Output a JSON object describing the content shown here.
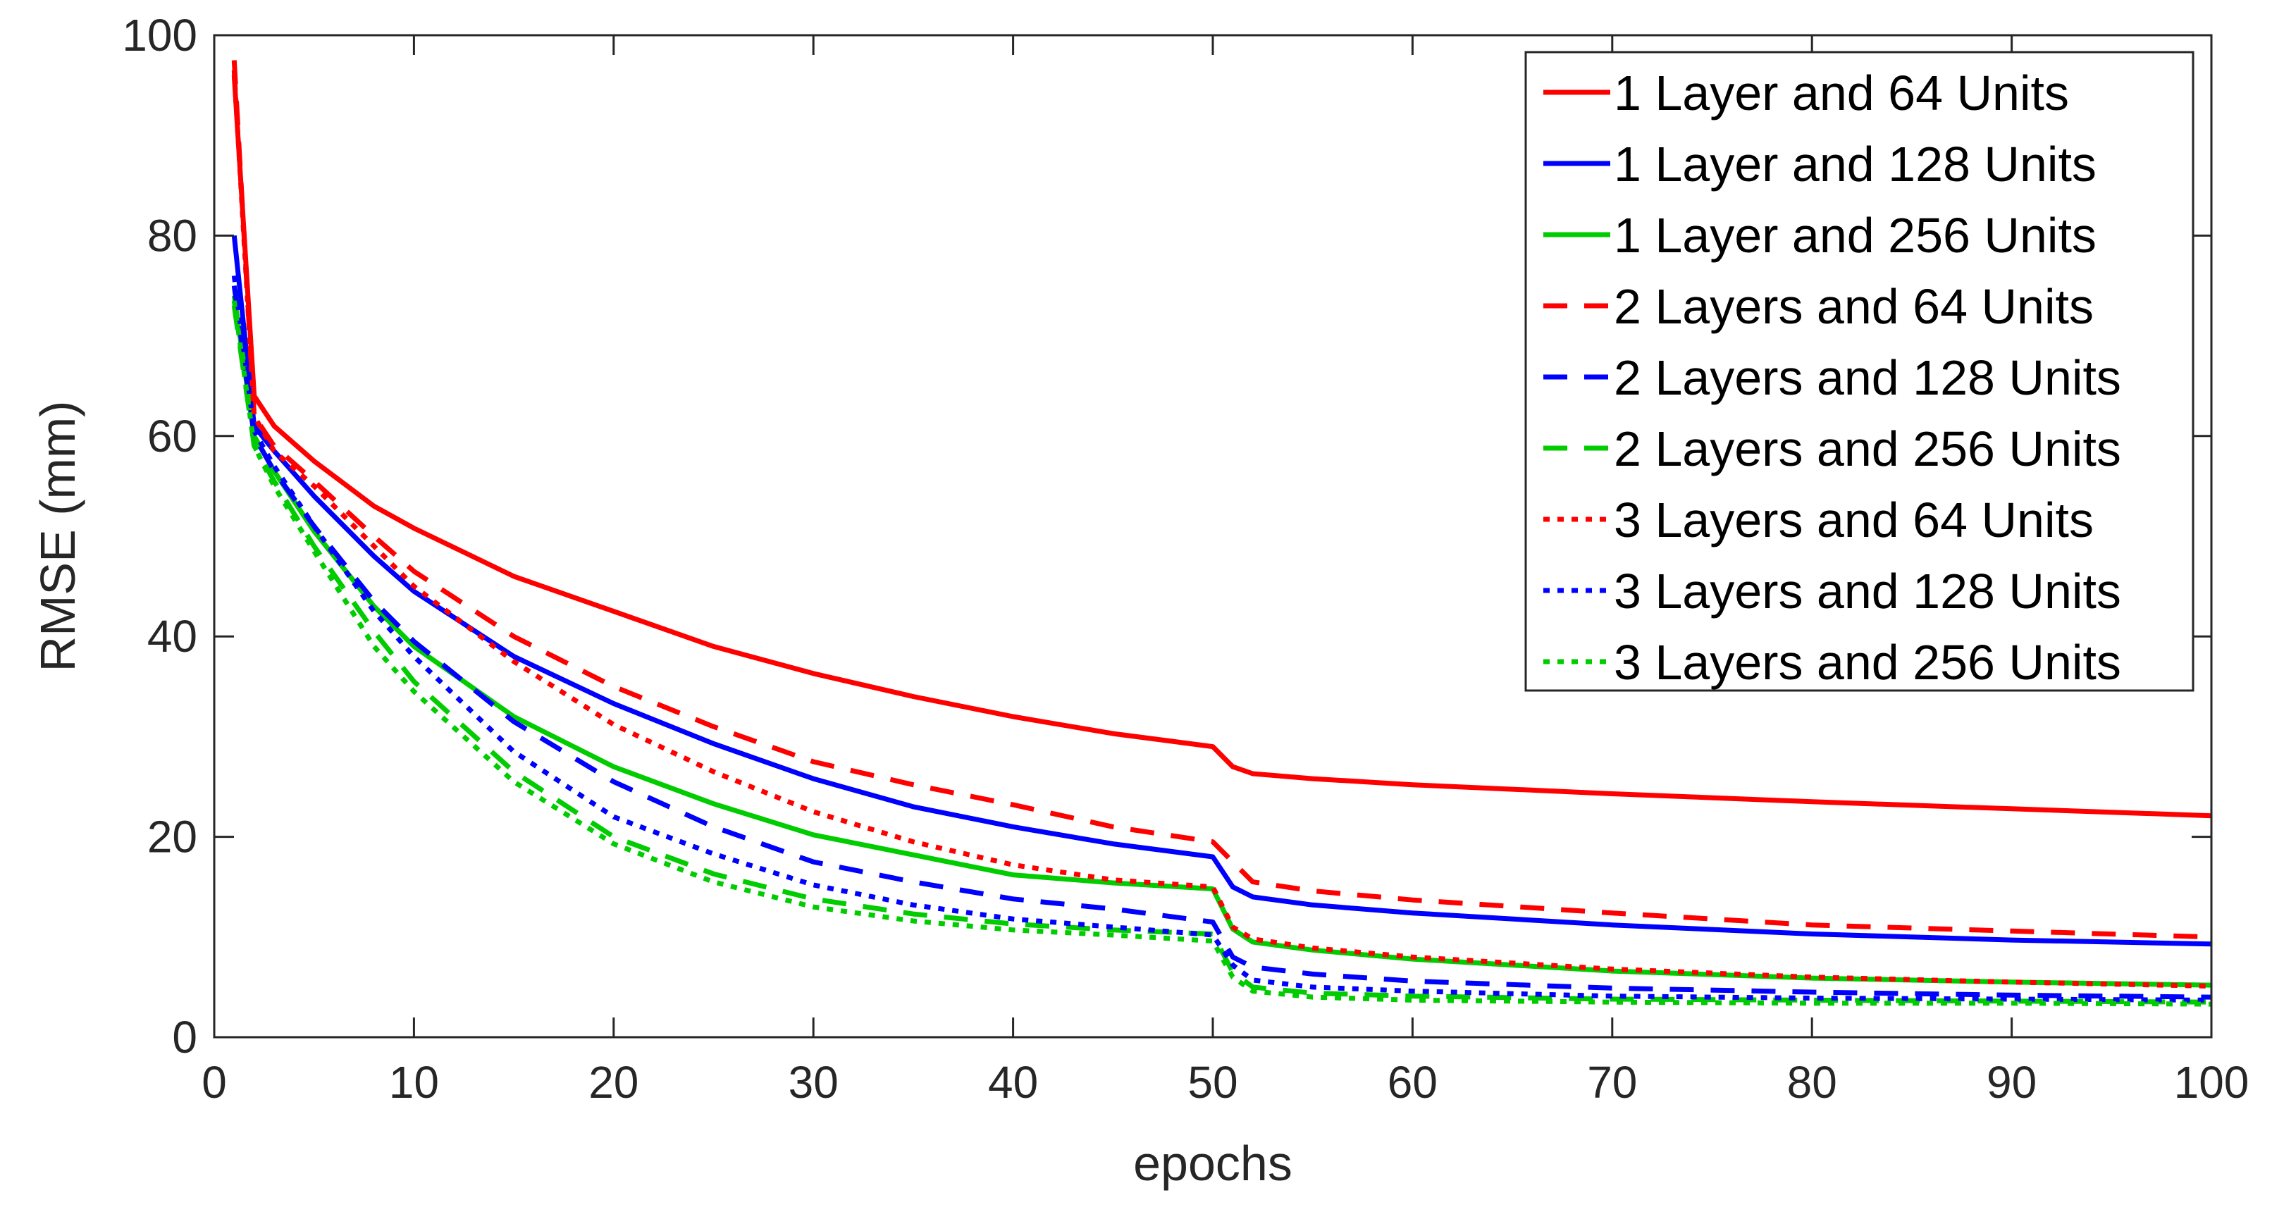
{
  "chart_data": {
    "type": "line",
    "title": "",
    "xlabel": "epochs",
    "ylabel": "RMSE (mm)",
    "xlim": [
      0,
      100
    ],
    "ylim": [
      0,
      100
    ],
    "xticks": [
      0,
      10,
      20,
      30,
      40,
      50,
      60,
      70,
      80,
      90,
      100
    ],
    "yticks": [
      0,
      20,
      40,
      60,
      80,
      100
    ],
    "grid": false,
    "legend_position": "top-right",
    "x": [
      1,
      2,
      3,
      5,
      8,
      10,
      15,
      20,
      25,
      30,
      35,
      40,
      45,
      50,
      51,
      52,
      55,
      60,
      70,
      80,
      90,
      100
    ],
    "series": [
      {
        "name": "1 Layer and 64 Units",
        "color": "#ff0000",
        "dash": "solid",
        "values": [
          96,
          64,
          61,
          57.5,
          53,
          50.8,
          46,
          42.5,
          39,
          36.3,
          34,
          32,
          30.3,
          29,
          27,
          26.3,
          25.8,
          25.2,
          24.3,
          23.5,
          22.8,
          22.1
        ]
      },
      {
        "name": "1 Layer and 128 Units",
        "color": "#0000ff",
        "dash": "solid",
        "values": [
          80,
          61,
          58.5,
          54,
          48,
          44.5,
          38,
          33.3,
          29.3,
          25.8,
          23,
          21,
          19.3,
          18,
          15,
          14,
          13.2,
          12.4,
          11.2,
          10.3,
          9.7,
          9.3
        ]
      },
      {
        "name": "1 Layer and 256 Units",
        "color": "#00cc00",
        "dash": "solid",
        "values": [
          74,
          60,
          56.5,
          50.5,
          43,
          39,
          32,
          27,
          23.3,
          20.2,
          18.2,
          16.2,
          15.4,
          14.8,
          10.8,
          9.5,
          8.7,
          7.8,
          6.6,
          5.9,
          5.5,
          5.2
        ]
      },
      {
        "name": "2 Layers and 64 Units",
        "color": "#ff0000",
        "dash": "dashed",
        "values": [
          97.5,
          62,
          59,
          55.5,
          50,
          46.5,
          40,
          35,
          31,
          27.5,
          25.2,
          23.2,
          21,
          19.5,
          17.5,
          15.5,
          14.6,
          13.7,
          12.4,
          11.2,
          10.6,
          10.0
        ]
      },
      {
        "name": "2 Layers and 128 Units",
        "color": "#0000ff",
        "dash": "dashed",
        "values": [
          75,
          60,
          56.5,
          51,
          43.5,
          39.5,
          31.5,
          25.5,
          21,
          17.5,
          15.5,
          13.8,
          12.8,
          11.5,
          8,
          7,
          6.3,
          5.6,
          4.9,
          4.5,
          4.2,
          4.0
        ]
      },
      {
        "name": "2 Layers and 256 Units",
        "color": "#00cc00",
        "dash": "dashed",
        "values": [
          73,
          59,
          55.5,
          49,
          40.5,
          35.5,
          26.5,
          20,
          16.3,
          13.8,
          12.3,
          11.3,
          10.7,
          10.3,
          6.5,
          5,
          4.4,
          4.1,
          3.8,
          3.7,
          3.6,
          3.5
        ]
      },
      {
        "name": "3 Layers and 64 Units",
        "color": "#ff0000",
        "dash": "dotted",
        "values": [
          96.5,
          62,
          58.5,
          55,
          49,
          45,
          37.5,
          31.2,
          26.5,
          22.5,
          19.5,
          17.2,
          15.7,
          15,
          11,
          9.8,
          8.9,
          8,
          6.8,
          6,
          5.5,
          5.1
        ]
      },
      {
        "name": "3 Layers and 128 Units",
        "color": "#0000ff",
        "dash": "dotted",
        "values": [
          76,
          60.5,
          57,
          51,
          42.5,
          38,
          28.5,
          22,
          18.3,
          15.2,
          13.2,
          11.8,
          11,
          10.2,
          7.2,
          5.7,
          5,
          4.6,
          4.1,
          3.9,
          3.8,
          3.7
        ]
      },
      {
        "name": "3 Layers and 256 Units",
        "color": "#00cc00",
        "dash": "dotted",
        "values": [
          73.5,
          59,
          55,
          48.5,
          39,
          34.5,
          25.5,
          19.3,
          15.5,
          13,
          11.6,
          10.7,
          10.2,
          9.6,
          6,
          4.6,
          4,
          3.7,
          3.5,
          3.4,
          3.4,
          3.3
        ]
      }
    ]
  }
}
